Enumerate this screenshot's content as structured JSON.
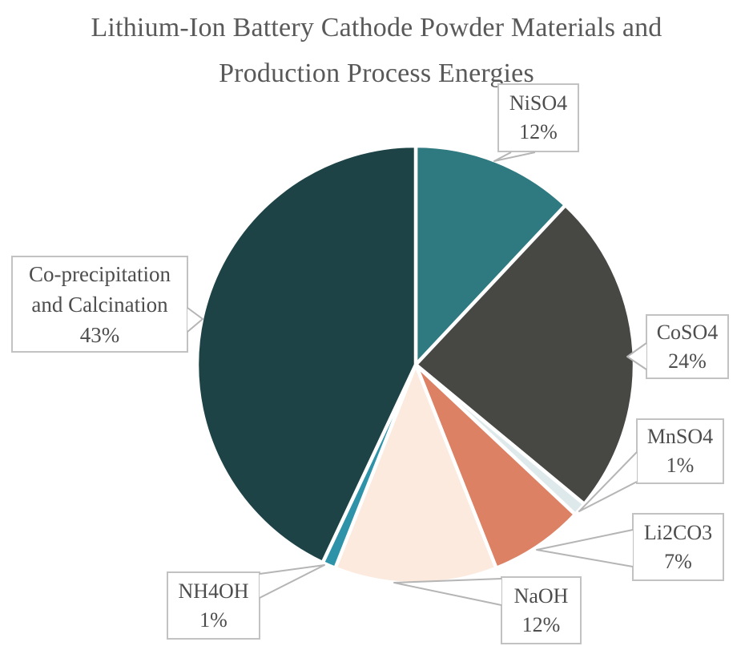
{
  "page": {
    "background_color": "#ffffff",
    "title_color": "#595959",
    "label_text_color": "#4d4d4d",
    "callout_border_color": "#c2c2c2",
    "slice_separator_color": "#ffffff"
  },
  "chart_data": {
    "type": "pie",
    "title": "Lithium-Ion Battery Cathode Powder Materials and Production Process Energies",
    "title_lines": [
      "Lithium-Ion Battery Cathode Powder Materials and",
      "Production Process Energies"
    ],
    "start_angle_deg": 0,
    "direction": "clockwise",
    "legend_position": "none",
    "data_labels_style": "outside-callout-boxes",
    "units": "percent",
    "slices": [
      {
        "label": "NiSO4",
        "value": 12,
        "pct_label": "12%",
        "color": "#2F7A80"
      },
      {
        "label": "CoSO4",
        "value": 24,
        "pct_label": "24%",
        "color": "#474744"
      },
      {
        "label": "MnSO4",
        "value": 1,
        "pct_label": "1%",
        "color": "#DEE9EC"
      },
      {
        "label": "Li2CO3",
        "value": 7,
        "pct_label": "7%",
        "color": "#DD8164"
      },
      {
        "label": "NaOH",
        "value": 12,
        "pct_label": "12%",
        "color": "#FBEADD"
      },
      {
        "label": "NH4OH",
        "value": 1,
        "pct_label": "1%",
        "color": "#2E93A9"
      },
      {
        "label": "Co-precipitation and Calcination",
        "label_lines": [
          "Co-precipitation",
          "and Calcination"
        ],
        "value": 43,
        "pct_label": "43%",
        "color": "#1D4346"
      }
    ]
  }
}
